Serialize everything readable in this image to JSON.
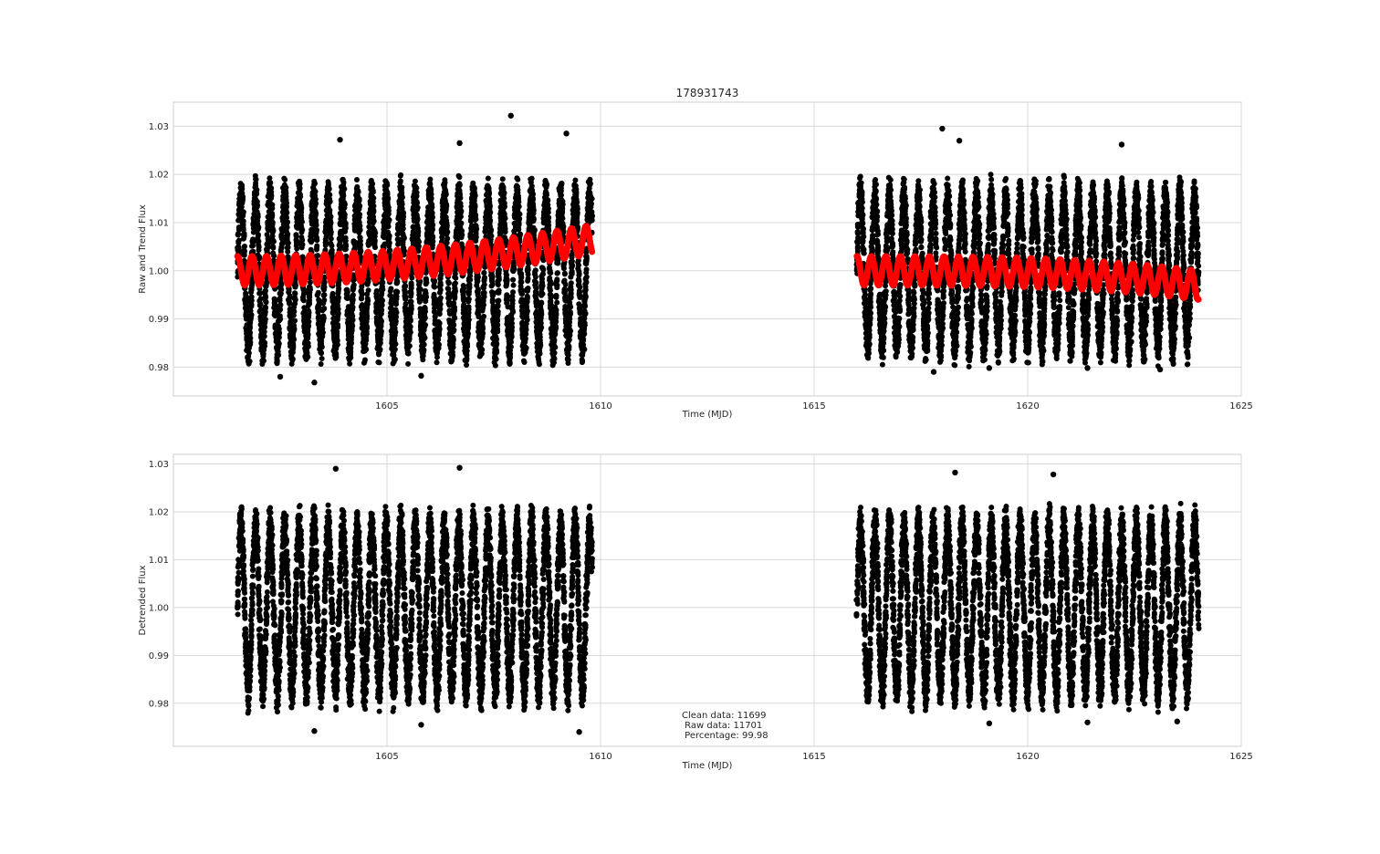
{
  "chart_data": [
    {
      "type": "scatter",
      "title": "178931743",
      "xlabel": "Time (MJD)",
      "ylabel": "Raw and Trend Flux",
      "xlim": [
        1600,
        1625
      ],
      "ylim": [
        0.974,
        1.035
      ],
      "xticks": [
        1605,
        1610,
        1615,
        1620,
        1625
      ],
      "yticks": [
        0.98,
        0.99,
        1.0,
        1.01,
        1.02,
        1.03
      ],
      "xtick_labels": [
        "1605",
        "1610",
        "1615",
        "1620",
        "1625"
      ],
      "ytick_labels": [
        "0.98",
        "0.99",
        "1.00",
        "1.01",
        "1.02",
        "1.03"
      ],
      "grid": true,
      "series": [
        {
          "role": "raw",
          "color": "#000000",
          "segments": [
            [
              1601.5,
              1609.8
            ],
            [
              1616.0,
              1624.0
            ]
          ],
          "period": 0.34,
          "center": 1.0,
          "amplitude": 0.017,
          "outliers": [
            [
              1603.9,
              1.0272
            ],
            [
              1607.9,
              1.0322
            ],
            [
              1609.2,
              1.0285
            ],
            [
              1606.7,
              1.0265
            ],
            [
              1618.0,
              1.0295
            ],
            [
              1618.4,
              1.027
            ],
            [
              1622.2,
              1.0262
            ],
            [
              1603.3,
              0.9768
            ],
            [
              1605.8,
              0.9782
            ],
            [
              1602.5,
              0.978
            ],
            [
              1617.8,
              0.979
            ],
            [
              1619.1,
              0.9798
            ],
            [
              1621.4,
              0.9798
            ],
            [
              1623.1,
              0.9795
            ]
          ]
        },
        {
          "role": "trend",
          "color": "#ff0000",
          "segments": [
            [
              1601.5,
              1609.8
            ],
            [
              1616.0,
              1624.0
            ]
          ],
          "period": 0.34,
          "center": 1.0,
          "amplitude": 0.003,
          "end_values": [
            [
              1.004,
              1.008
            ],
            [
              1.004,
              0.995
            ]
          ]
        }
      ]
    },
    {
      "type": "scatter",
      "title": "",
      "xlabel": "Time (MJD)",
      "ylabel": "Detrended Flux",
      "xlim": [
        1600,
        1625
      ],
      "ylim": [
        0.971,
        1.032
      ],
      "xticks": [
        1605,
        1610,
        1615,
        1620,
        1625
      ],
      "yticks": [
        0.98,
        0.99,
        1.0,
        1.01,
        1.02,
        1.03
      ],
      "xtick_labels": [
        "1605",
        "1610",
        "1615",
        "1620",
        "1625"
      ],
      "ytick_labels": [
        "0.98",
        "0.99",
        "1.00",
        "1.01",
        "1.02",
        "1.03"
      ],
      "grid": true,
      "series": [
        {
          "role": "detrended",
          "color": "#000000",
          "segments": [
            [
              1601.5,
              1609.8
            ],
            [
              1616.0,
              1624.0
            ]
          ],
          "period": 0.34,
          "center": 1.0,
          "amplitude": 0.019,
          "outliers": [
            [
              1603.3,
              0.9742
            ],
            [
              1605.8,
              0.9755
            ],
            [
              1609.5,
              0.974
            ],
            [
              1619.1,
              0.9758
            ],
            [
              1621.4,
              0.976
            ],
            [
              1623.5,
              0.9762
            ],
            [
              1603.8,
              1.029
            ],
            [
              1606.7,
              1.0292
            ],
            [
              1618.3,
              1.0282
            ],
            [
              1620.6,
              1.0278
            ]
          ]
        }
      ],
      "annotation": [
        "Clean data: 11699",
        " Raw data: 11701",
        " Percentage: 99.98"
      ]
    }
  ]
}
